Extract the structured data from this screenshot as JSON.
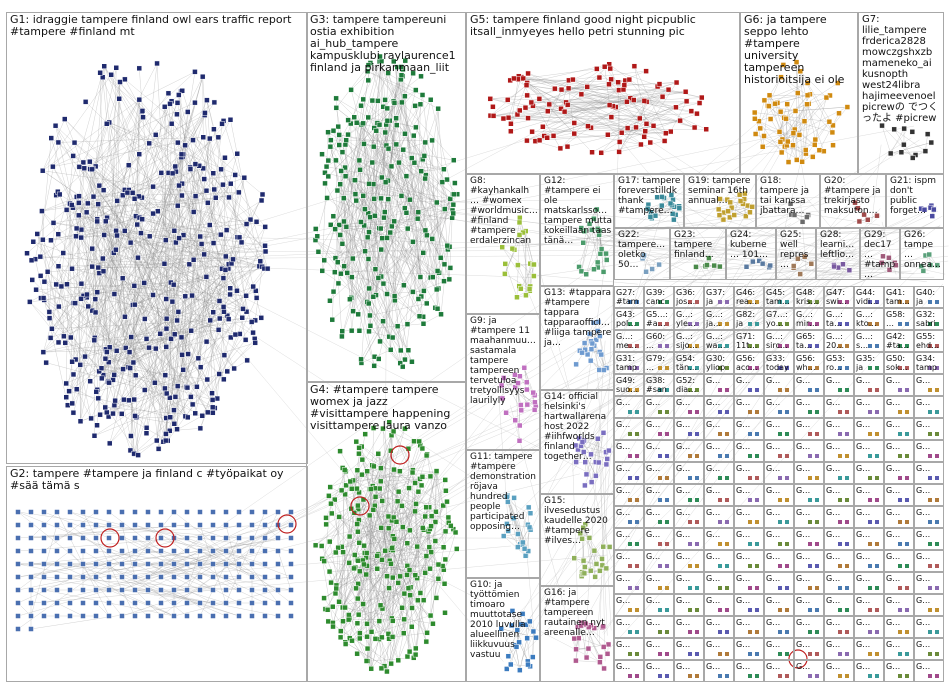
{
  "groups": [
    {
      "id": "G1",
      "label": "G1: idraggie tampere finland owl ears traffic report #tampere #finland mt",
      "color": "#1f2a6e"
    },
    {
      "id": "G2",
      "label": "G2: tampere #tampere ja finland c #työpaikat oy #sää tämä s",
      "color": "#4a6fb0"
    },
    {
      "id": "G3",
      "label": "G3: tampere tampereuni ostia exhibition ai_hub_tampere kampusklubi raylaurence1 finland ja pirkanmaan_liit",
      "color": "#1e7a3a"
    },
    {
      "id": "G4",
      "label": "G4: #tampere tampere womex ja jazz #visittampere happening visittampere laura vanzo",
      "color": "#2e8b2e"
    },
    {
      "id": "G5",
      "label": "G5: tampere finland good night picpublic itsall_inmyeyes hello petri stunning pic",
      "color": "#b01818"
    },
    {
      "id": "G6",
      "label": "G6: ja tampere seppo lehto #tampere university tampereen historioitsija ei ole",
      "color": "#d08a10"
    },
    {
      "id": "G7",
      "label": "G7: lilie_tampere frderica2828 mowczgshxzb mameneko_ai kusnopth west24libra hajimeevenoel picrewの でつくったよ #picrew",
      "color": "#333333"
    },
    {
      "id": "G8",
      "label": "G8: #kayhankalh… #womex #worldmusic… #finland #tampere erdalerzincan",
      "color": "#9bbf3a"
    },
    {
      "id": "G9",
      "label": "G9: ja #tampere 11 maahanmuu… sastamala tampere tampereen tervetuloa tretyollisyys laurilyly",
      "color": "#c070c0"
    },
    {
      "id": "G10",
      "label": "G10: ja työttömien timoaro muuttotase 2010 luvulla alueellinen liikkuvuus vastuu",
      "color": "#3b7bbf"
    },
    {
      "id": "G11",
      "label": "G11: tampere #tampere demonstration röjava hundred people participated opposing…",
      "color": "#5aa0c0"
    },
    {
      "id": "G12",
      "label": "G12: #tampere ei ole matskarlsso… tampere mutta kokeillaan taas tänä…",
      "color": "#4b9b6b"
    },
    {
      "id": "G13",
      "label": "G13: #tappara #tampere tappara tapparaofficl… #liiga tampere ja…",
      "color": "#6f9bd0"
    },
    {
      "id": "G14",
      "label": "G14: official helsinki's hartwallarena host 2022 #iihfworlds finland together…",
      "color": "#7a6ec0"
    },
    {
      "id": "G15",
      "label": "G15: ilvesedustus kaudelle 2020 #tampere #ilves…",
      "color": "#8fb05a"
    },
    {
      "id": "G16",
      "label": "G16: ja #tampere tampereen rautainen nyt areenalle…",
      "color": "#b05a8f"
    },
    {
      "id": "G17",
      "label": "G17: tampere foreverstilldk thank #tampere…",
      "color": "#3a8a9a"
    },
    {
      "id": "G18",
      "label": "G18: tampere ja tai kanssa jbattara…",
      "color": "#6a6a6a"
    },
    {
      "id": "G19",
      "label": "G19: tampere seminar 16th annual…",
      "color": "#c0a030"
    },
    {
      "id": "G20",
      "label": "G20: #tampere ja trekirjasto maksuton…",
      "color": "#a04a4a"
    },
    {
      "id": "G21",
      "label": "G21: ispm don't public forget…",
      "color": "#4a4aa0"
    },
    {
      "id": "G22",
      "label": "G22: tampere… oletko 50…",
      "color": "#7aa0c0"
    },
    {
      "id": "G23",
      "label": "G23: tampere finland…",
      "color": "#4a8a4a"
    },
    {
      "id": "G24",
      "label": "G24: kuberne… 101…",
      "color": "#5a7aa0"
    },
    {
      "id": "G25",
      "label": "G25: well repres…",
      "color": "#a07a5a"
    },
    {
      "id": "G28",
      "label": "G28: learni… leftlio…",
      "color": "#7a5aa0"
    },
    {
      "id": "G29",
      "label": "G29: dec17… #tamp…",
      "color": "#a05a7a"
    },
    {
      "id": "G26",
      "label": "G26: tampe… onnea…",
      "color": "#5aa07a"
    }
  ],
  "small_tiles": [
    "G27: #tam… epe_… basi…",
    "G39: canc…",
    "G36: jos…",
    "G37: ja",
    "G46: rea…",
    "G45: tam…",
    "G48: kris…",
    "G47: swi…",
    "G44: vidi…",
    "G41: tam…",
    "G40: ja",
    "G43: pol… kiit…",
    "G5…: #a…",
    "G…: yle…",
    "G…: ja…",
    "G82: ja",
    "G7…: yo…",
    "G…: mir…",
    "G…: ta…",
    "G…: kto…",
    "G58: …",
    "G32: sabri… tamp…",
    "G…: me…",
    "G60: …",
    "G…: sijo…",
    "G…: wa…",
    "G71: 11t…",
    "G…: sirc…",
    "G65: ta…",
    "G…: 20…",
    "G…: s…",
    "G42: #ta… osp…",
    "G55: ehd…",
    "G31: tamp… gam…",
    "G79: …",
    "G54: tän…",
    "G30: yliop… tamp… tiedo…",
    "G56: acc…",
    "G33: today field…",
    "G56: wh…",
    "G53: ro…",
    "G35: ja tamp…",
    "G50: sok…",
    "G34: tamp… yout…",
    "G49: suo…",
    "G38: #san…",
    "G52: dia…"
  ],
  "title_hidden": ""
}
